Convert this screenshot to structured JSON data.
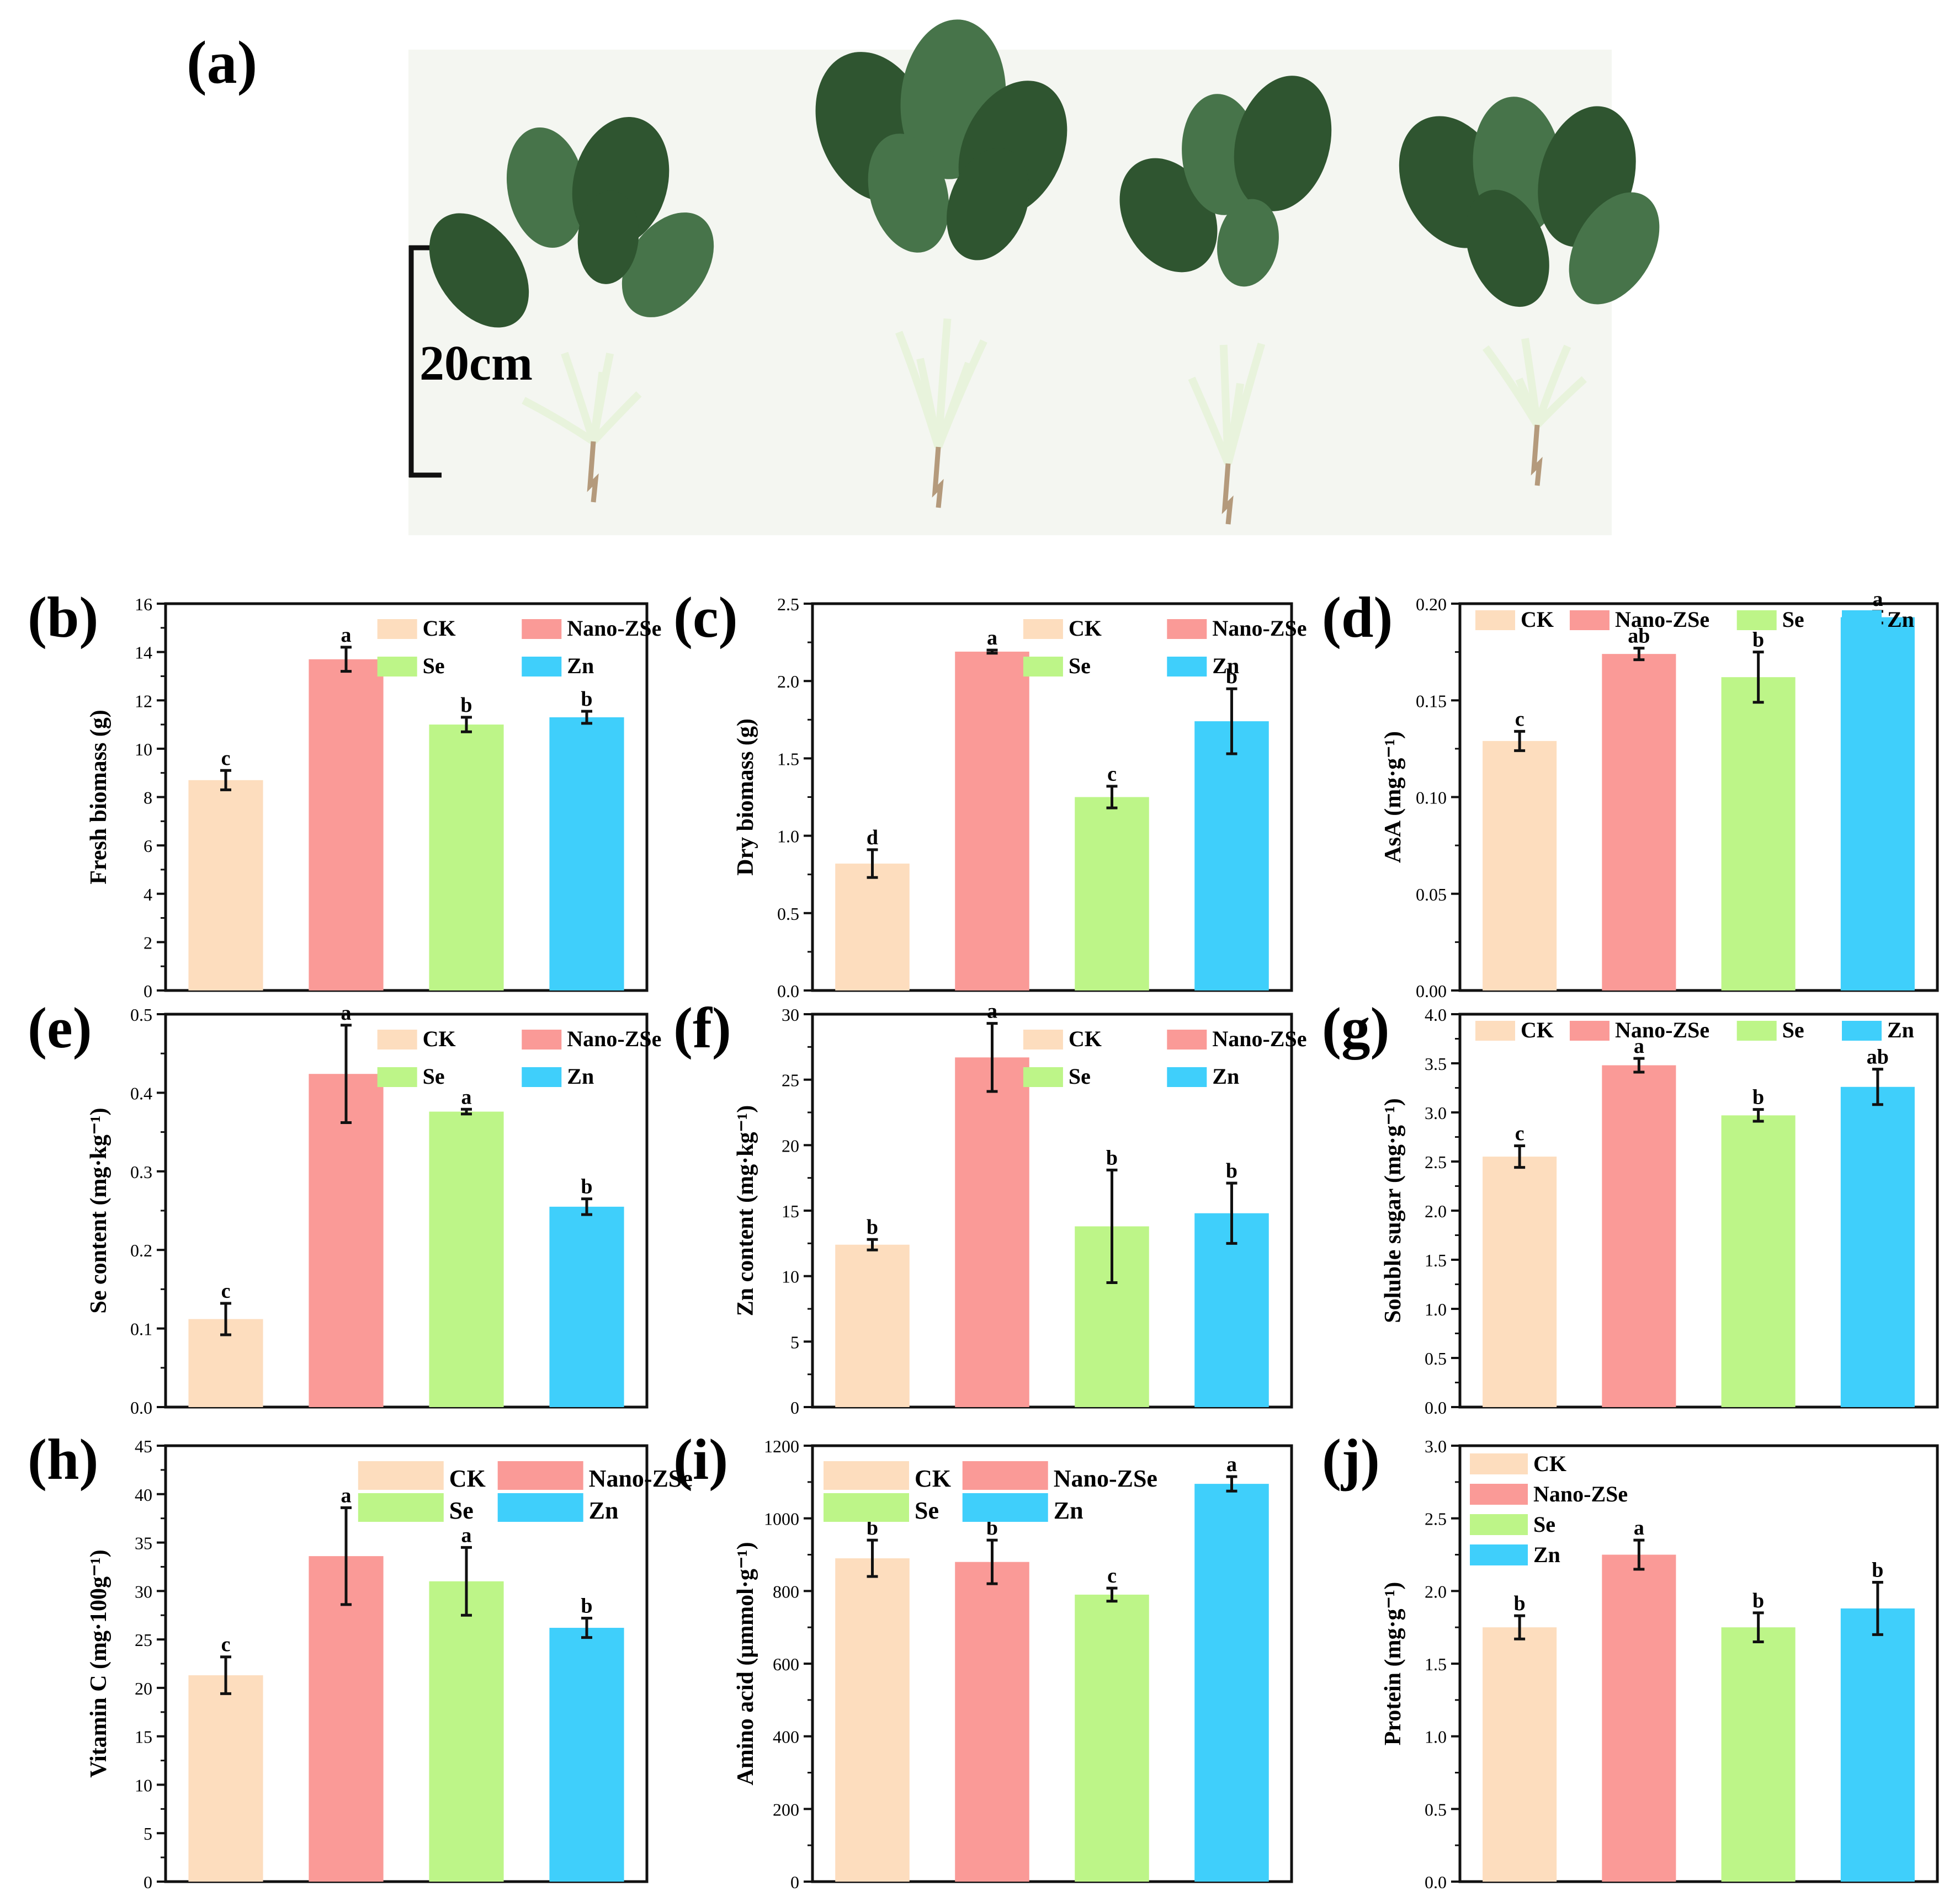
{
  "photo": {
    "panel_label": "(a)",
    "scale_label": "20cm"
  },
  "colors": {
    "CK": "#FDDDBE",
    "Nano-ZSe": "#FA9A97",
    "Se": "#BDF588",
    "Zn": "#3FCFFB",
    "leaf": "#2f5530",
    "leaf_light": "#47744a",
    "stem": "#e8f3dc",
    "root": "#b49a7c"
  },
  "chart_data": [
    {
      "panel": "(b)",
      "type": "bar",
      "ylabel": "Fresh biomass (g)",
      "ylim": [
        0,
        16
      ],
      "ticks": [
        0,
        2,
        4,
        6,
        8,
        10,
        12,
        14,
        16
      ],
      "categories": [
        "CK",
        "Nano-ZSe",
        "Se",
        "Zn"
      ],
      "values": [
        8.7,
        13.7,
        11.0,
        11.3
      ],
      "errors": [
        0.4,
        0.5,
        0.3,
        0.25
      ],
      "letters": [
        "c",
        "a",
        "b",
        "b"
      ],
      "legend": [
        "CK",
        "Nano-ZSe",
        "Se",
        "Zn"
      ],
      "legend_layout": "2x2-top-right"
    },
    {
      "panel": "(c)",
      "type": "bar",
      "ylabel": "Dry biomass (g)",
      "ylim": [
        0,
        2.5
      ],
      "ticks": [
        0.0,
        0.5,
        1.0,
        1.5,
        2.0,
        2.5
      ],
      "categories": [
        "CK",
        "Nano-ZSe",
        "Se",
        "Zn"
      ],
      "values": [
        0.82,
        2.19,
        1.25,
        1.74
      ],
      "errors": [
        0.09,
        0.01,
        0.07,
        0.21
      ],
      "letters": [
        "d",
        "a",
        "c",
        "b"
      ],
      "legend": [
        "CK",
        "Nano-ZSe",
        "Se",
        "Zn"
      ],
      "legend_layout": "2x2-top-right"
    },
    {
      "panel": "(d)",
      "type": "bar",
      "ylabel": "AsA (mg·g⁻¹)",
      "ylim": [
        0,
        0.2
      ],
      "ticks": [
        0.0,
        0.05,
        0.1,
        0.15,
        0.2
      ],
      "categories": [
        "CK",
        "Nano-ZSe",
        "Se",
        "Zn"
      ],
      "values": [
        0.129,
        0.174,
        0.162,
        0.193
      ],
      "errors": [
        0.005,
        0.003,
        0.013,
        0.003
      ],
      "letters": [
        "c",
        "ab",
        "b",
        "a"
      ],
      "legend": [
        "CK",
        "Nano-ZSe",
        "Se",
        "Zn"
      ],
      "legend_layout": "1x4-top"
    },
    {
      "panel": "(e)",
      "type": "bar",
      "ylabel": "Se content (mg·kg⁻¹)",
      "ylim": [
        0,
        0.5
      ],
      "ticks": [
        0.0,
        0.1,
        0.2,
        0.3,
        0.4,
        0.5
      ],
      "categories": [
        "CK",
        "Nano-ZSe",
        "Se",
        "Zn"
      ],
      "values": [
        0.112,
        0.424,
        0.376,
        0.255
      ],
      "errors": [
        0.02,
        0.062,
        0.003,
        0.01
      ],
      "letters": [
        "c",
        "a",
        "a",
        "b"
      ],
      "legend": [
        "CK",
        "Nano-ZSe",
        "Se",
        "Zn"
      ],
      "legend_layout": "2x2-top-right"
    },
    {
      "panel": "(f)",
      "type": "bar",
      "ylabel": "Zn content (mg·kg⁻¹)",
      "ylim": [
        0,
        30
      ],
      "ticks": [
        0,
        5,
        10,
        15,
        20,
        25,
        30
      ],
      "categories": [
        "CK",
        "Nano-ZSe",
        "Se",
        "Zn"
      ],
      "values": [
        12.4,
        26.7,
        13.8,
        14.8
      ],
      "errors": [
        0.4,
        2.6,
        4.3,
        2.3
      ],
      "letters": [
        "b",
        "a",
        "b",
        "b"
      ],
      "legend": [
        "CK",
        "Nano-ZSe",
        "Se",
        "Zn"
      ],
      "legend_layout": "2x2-top-right"
    },
    {
      "panel": "(g)",
      "type": "bar",
      "ylabel": "Soluble sugar (mg·g⁻¹)",
      "ylim": [
        0,
        4.0
      ],
      "ticks": [
        0.0,
        0.5,
        1.0,
        1.5,
        2.0,
        2.5,
        3.0,
        3.5,
        4.0
      ],
      "categories": [
        "CK",
        "Nano-ZSe",
        "Se",
        "Zn"
      ],
      "values": [
        2.55,
        3.48,
        2.97,
        3.26
      ],
      "errors": [
        0.11,
        0.07,
        0.06,
        0.18
      ],
      "letters": [
        "c",
        "a",
        "b",
        "ab"
      ],
      "legend": [
        "CK",
        "Nano-ZSe",
        "Se",
        "Zn"
      ],
      "legend_layout": "1x4-top"
    },
    {
      "panel": "(h)",
      "type": "bar",
      "ylabel": "Vitamin C (mg·100g⁻¹)",
      "ylim": [
        0,
        45
      ],
      "ticks": [
        0,
        5,
        10,
        15,
        20,
        25,
        30,
        35,
        40,
        45
      ],
      "categories": [
        "CK",
        "Nano-ZSe",
        "Se",
        "Zn"
      ],
      "values": [
        21.3,
        33.6,
        31.0,
        26.2
      ],
      "errors": [
        1.9,
        5.0,
        3.5,
        1.0
      ],
      "letters": [
        "c",
        "a",
        "a",
        "b"
      ],
      "legend": [
        "CK",
        "Nano-ZSe",
        "Se",
        "Zn"
      ],
      "legend_layout": "2x2-top-right-large"
    },
    {
      "panel": "(i)",
      "type": "bar",
      "ylabel": "Amino acid (μmmol·g⁻¹)",
      "ylim": [
        0,
        1200
      ],
      "ticks": [
        0,
        200,
        400,
        600,
        800,
        1000,
        1200
      ],
      "categories": [
        "CK",
        "Nano-ZSe",
        "Se",
        "Zn"
      ],
      "values": [
        890,
        880,
        790,
        1095
      ],
      "errors": [
        50,
        60,
        18,
        20
      ],
      "letters": [
        "b",
        "b",
        "c",
        "a"
      ],
      "legend": [
        "CK",
        "Nano-ZSe",
        "Se",
        "Zn"
      ],
      "legend_layout": "2x2-top-left-large"
    },
    {
      "panel": "(j)",
      "type": "bar",
      "ylabel": "Protein (mg·g⁻¹)",
      "ylim": [
        0,
        3.0
      ],
      "ticks": [
        0.0,
        0.5,
        1.0,
        1.5,
        2.0,
        2.5,
        3.0
      ],
      "categories": [
        "CK",
        "Nano-ZSe",
        "Se",
        "Zn"
      ],
      "values": [
        1.75,
        2.25,
        1.75,
        1.88
      ],
      "errors": [
        0.08,
        0.1,
        0.1,
        0.18
      ],
      "letters": [
        "b",
        "a",
        "b",
        "b"
      ],
      "legend": [
        "CK",
        "Nano-ZSe",
        "Se",
        "Zn"
      ],
      "legend_layout": "4x1-top-left"
    }
  ]
}
